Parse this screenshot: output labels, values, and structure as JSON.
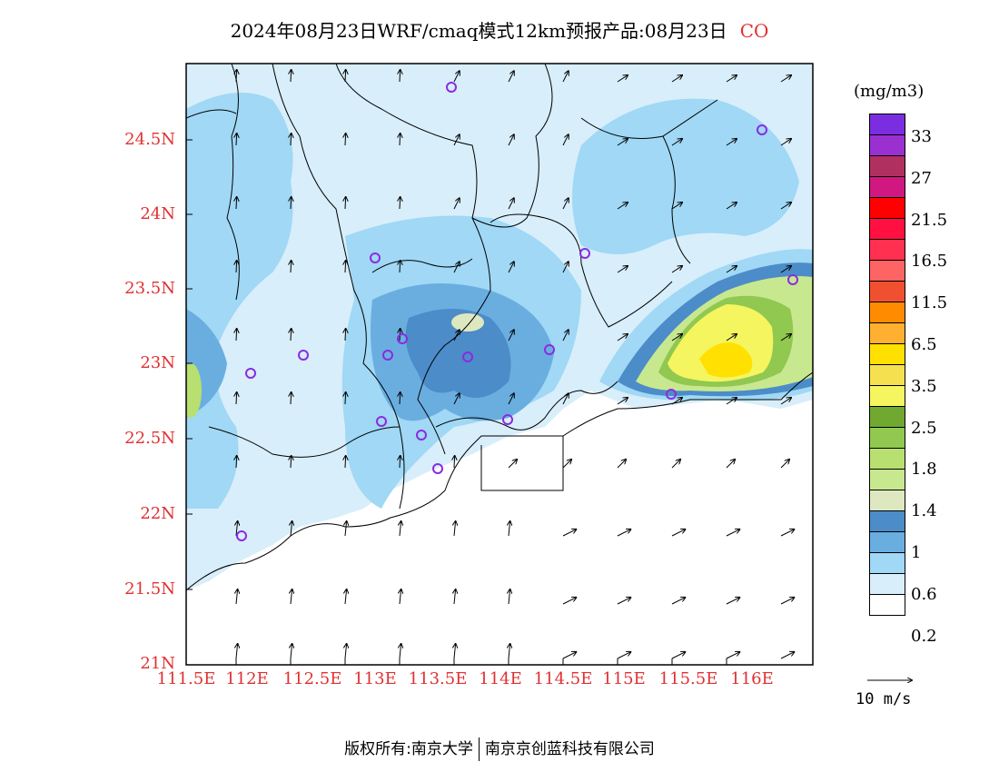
{
  "title": {
    "main": "2024年08月23日WRF/cmaq模式12km预报产品:08月23日",
    "species": "CO"
  },
  "colorbar": {
    "unit": "(mg/m3)",
    "colors": [
      "#7b2ee0",
      "#9a30d0",
      "#b03060",
      "#d01880",
      "#ff0000",
      "#ff1040",
      "#ff3050",
      "#ff6464",
      "#f05030",
      "#ff8c00",
      "#ffb030",
      "#ffe000",
      "#f5e050",
      "#f5f560",
      "#70a830",
      "#90c850",
      "#b8e070",
      "#c8e890",
      "#dde8c0",
      "#4c8cc8",
      "#6aaee0",
      "#a0d8f5",
      "#d8eefa",
      "#ffffff"
    ],
    "labels": [
      "33",
      "27",
      "21.5",
      "16.5",
      "11.5",
      "6.5",
      "3.5",
      "2.5",
      "1.8",
      "1.4",
      "1",
      "0.6",
      "0.2"
    ]
  },
  "axes": {
    "lat_labels": [
      "24.5N",
      "24N",
      "23.5N",
      "23N",
      "22.5N",
      "22N",
      "21.5N",
      "21N"
    ],
    "lon_labels": [
      "111.5E",
      "112E",
      "112.5E",
      "113E",
      "113.5E",
      "114E",
      "114.5E",
      "115E",
      "115.5E",
      "116E"
    ]
  },
  "vector_legend": "10 m/s",
  "footer": {
    "left": "版权所有:南京大学",
    "right": "南京京创蓝科技有限公司"
  }
}
